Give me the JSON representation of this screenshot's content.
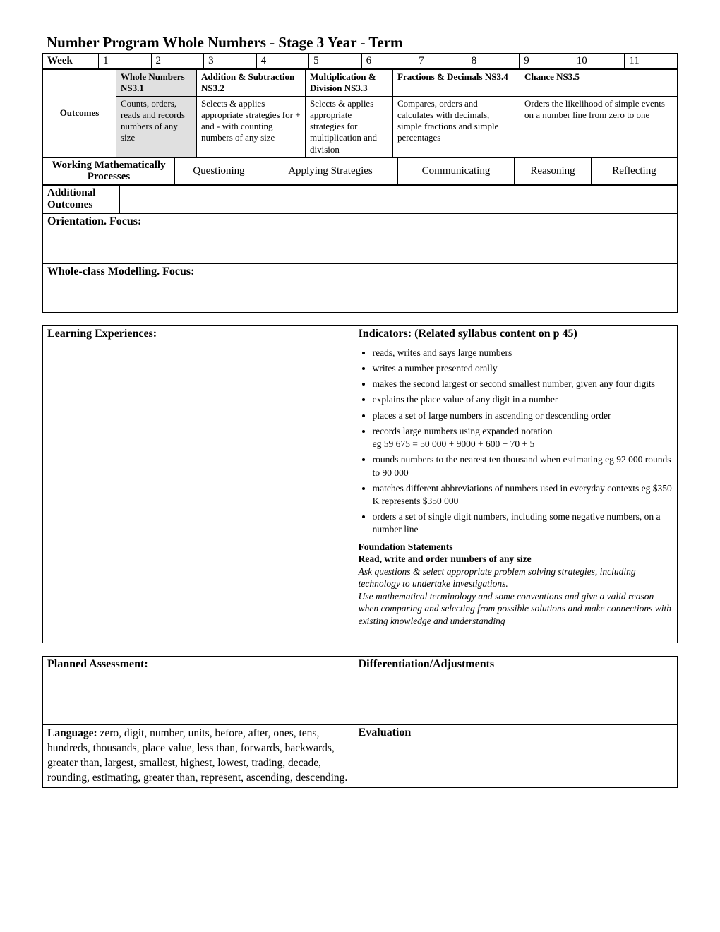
{
  "title": "Number Program   Whole Numbers -   Stage 3   Year        -   Term",
  "week": {
    "label": "Week",
    "nums": [
      "1",
      "2",
      "3",
      "4",
      "5",
      "6",
      "7",
      "8",
      "9",
      "10",
      "11"
    ]
  },
  "outcomes": {
    "label": "Outcomes",
    "cols": [
      {
        "head": "Whole Numbers NS3.1",
        "desc": "Counts, orders, reads and records numbers of any size"
      },
      {
        "head": "Addition & Subtraction  NS3.2",
        "desc": "Selects & applies appropriate strategies for + and -  with counting numbers of any size"
      },
      {
        "head": "Multiplication & Division  NS3.3",
        "desc": "Selects & applies appropriate strategies for multiplication and division"
      },
      {
        "head": "Fractions & Decimals  NS3.4",
        "desc": "Compares, orders and calculates with decimals, simple fractions and simple percentages"
      },
      {
        "head": "Chance NS3.5",
        "desc": "Orders the likelihood of simple events on a number line from zero to one"
      }
    ]
  },
  "wmp": {
    "label": "Working Mathematically Processes",
    "items": [
      "Questioning",
      "Applying Strategies",
      "Communicating",
      "Reasoning",
      "Reflecting"
    ]
  },
  "additional": {
    "label": "Additional Outcomes"
  },
  "orientation": "Orientation.  Focus:",
  "modelling": "Whole-class Modelling. Focus:",
  "learning": {
    "left": "Learning Experiences:",
    "right": "Indicators: (Related syllabus content on p 45)",
    "indicators": [
      "reads, writes and says large numbers",
      "writes a number presented orally",
      "makes the second largest or second smallest number, given any four digits",
      "explains the place value of any digit in a number",
      "places a set of large numbers in ascending or descending order",
      "records large numbers using expanded notation\neg 59 675 = 50 000 + 9000 + 600 + 70 + 5",
      "rounds numbers to the nearest ten thousand when estimating eg 92 000 rounds to 90 000",
      "matches different abbreviations of numbers used in everyday contexts eg $350 K represents $350 000",
      "orders a set of single digit numbers, including some negative numbers, on a number line"
    ],
    "foundation_title": "Foundation Statements",
    "foundation_sub": "Read, write and order numbers of any size",
    "foundation_body": "Ask questions & select appropriate problem solving strategies, including technology to undertake investigations.\nUse mathematical terminology and some conventions and give a valid reason when comparing and selecting from possible solutions and make connections with existing knowledge and understanding"
  },
  "planned": "Planned Assessment:",
  "diff": "Differentiation/Adjustments",
  "language_label": "Language: ",
  "language_body": "zero, digit, number, units, before, after, ones, tens, hundreds, thousands, place value, less than, forwards, backwards, greater than, largest, smallest, highest, lowest, trading, decade, rounding, estimating, greater than, represent, ascending, descending.",
  "evaluation": "Evaluation"
}
